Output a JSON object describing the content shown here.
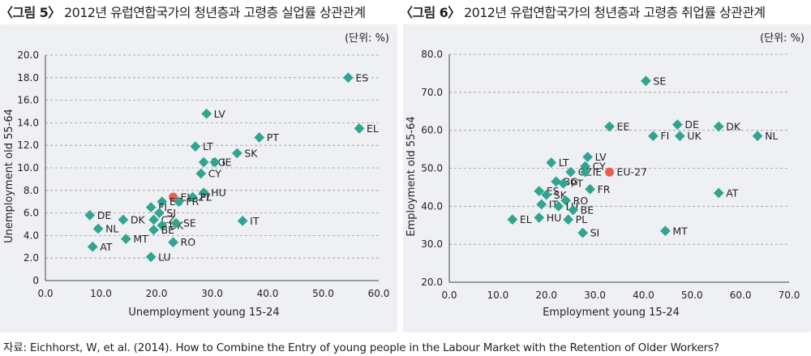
{
  "figures": {
    "left": {
      "label": "〈그림 5〉",
      "title": "2012년 유럽연합국가의 청년층과 고령층 실업률 상관관계"
    },
    "right": {
      "label": "〈그림 6〉",
      "title": "2012년 유럽연합국가의 청년층과 고령층 취업률 상관관계"
    }
  },
  "colors": {
    "point": "#2fa48f",
    "eu": "#e8604c",
    "grid": "#9a9a9a",
    "axis": "#444444",
    "panel": "#eef0f3"
  },
  "source": "자료: Eichhorst, W, et al. (2014). How to Combine the Entry of young people in the Labour Market with the Retention of Older Workers?",
  "chart_data": [
    {
      "type": "scatter",
      "title": "2012년 유럽연합국가의 청년층과 고령층 실업률 상관관계",
      "unit": "(단위: %)",
      "xlabel": "Unemployment young 15-24",
      "ylabel": "Unemployment old 55-64",
      "xlim": [
        0,
        60
      ],
      "ylim": [
        0,
        20
      ],
      "xticks": [
        "0.0",
        "10.0",
        "20.0",
        "30.0",
        "40.0",
        "50.0",
        "60.0"
      ],
      "yticks": [
        "0",
        "2.0",
        "4.0",
        "6.0",
        "8.0",
        "10.0",
        "12.0",
        "14.0",
        "16.0",
        "18.0",
        "20.0"
      ],
      "points": [
        {
          "label": "ES",
          "x": 54.5,
          "y": 18.0
        },
        {
          "label": "EL",
          "x": 56.5,
          "y": 13.5
        },
        {
          "label": "LV",
          "x": 29.0,
          "y": 14.8
        },
        {
          "label": "PT",
          "x": 38.5,
          "y": 12.7
        },
        {
          "label": "LT",
          "x": 27.0,
          "y": 11.9
        },
        {
          "label": "SK",
          "x": 34.5,
          "y": 11.3
        },
        {
          "label": "BG",
          "x": 28.5,
          "y": 10.5
        },
        {
          "label": "IE",
          "x": 30.5,
          "y": 10.5
        },
        {
          "label": "CY",
          "x": 28.0,
          "y": 9.5
        },
        {
          "label": "EU-27",
          "x": 23.0,
          "y": 7.4,
          "highlight": true
        },
        {
          "label": "HU",
          "x": 28.5,
          "y": 7.8
        },
        {
          "label": "EE",
          "x": 21.0,
          "y": 7.0
        },
        {
          "label": "PL",
          "x": 26.5,
          "y": 7.4
        },
        {
          "label": "FR",
          "x": 24.0,
          "y": 7.0
        },
        {
          "label": "FI",
          "x": 19.0,
          "y": 6.5
        },
        {
          "label": "SI",
          "x": 20.5,
          "y": 6.0
        },
        {
          "label": "CZ",
          "x": 19.5,
          "y": 5.4
        },
        {
          "label": "UK",
          "x": 21.0,
          "y": 4.9
        },
        {
          "label": "SE",
          "x": 23.5,
          "y": 5.1
        },
        {
          "label": "DK",
          "x": 14.0,
          "y": 5.4
        },
        {
          "label": "DE",
          "x": 8.0,
          "y": 5.8
        },
        {
          "label": "NL",
          "x": 9.5,
          "y": 4.6
        },
        {
          "label": "IT",
          "x": 35.5,
          "y": 5.3
        },
        {
          "label": "MT",
          "x": 14.5,
          "y": 3.7
        },
        {
          "label": "BE",
          "x": 19.5,
          "y": 4.5
        },
        {
          "label": "RO",
          "x": 23.0,
          "y": 3.4
        },
        {
          "label": "AT",
          "x": 8.5,
          "y": 3.0
        },
        {
          "label": "LU",
          "x": 19.0,
          "y": 2.1
        }
      ]
    },
    {
      "type": "scatter",
      "title": "2012년 유럽연합국가의 청년층과 고령층 취업률 상관관계",
      "unit": "(단위: %)",
      "xlabel": "Employment young 15-24",
      "ylabel": "Employment old 55-64",
      "xlim": [
        0,
        70
      ],
      "ylim": [
        20,
        80
      ],
      "xticks": [
        "0.0",
        "10.0",
        "20.0",
        "30.0",
        "40.0",
        "50.0",
        "60.0",
        "70.0"
      ],
      "yticks": [
        "20.0",
        "30.0",
        "40.0",
        "50.0",
        "60.0",
        "70.0",
        "80.0"
      ],
      "points": [
        {
          "label": "SE",
          "x": 40.5,
          "y": 73.0
        },
        {
          "label": "EE",
          "x": 33.0,
          "y": 61.0
        },
        {
          "label": "DE",
          "x": 47.0,
          "y": 61.5
        },
        {
          "label": "DK",
          "x": 55.5,
          "y": 61.0
        },
        {
          "label": "NL",
          "x": 63.5,
          "y": 58.5
        },
        {
          "label": "FI",
          "x": 42.0,
          "y": 58.5
        },
        {
          "label": "UK",
          "x": 47.5,
          "y": 58.5
        },
        {
          "label": "LV",
          "x": 28.5,
          "y": 53.0
        },
        {
          "label": "LT",
          "x": 21.0,
          "y": 51.5
        },
        {
          "label": "CY",
          "x": 28.0,
          "y": 50.5
        },
        {
          "label": "CZ",
          "x": 25.0,
          "y": 49.0
        },
        {
          "label": "IE",
          "x": 28.0,
          "y": 49.0
        },
        {
          "label": "EU-27",
          "x": 33.0,
          "y": 49.0,
          "highlight": true
        },
        {
          "label": "BG",
          "x": 22.0,
          "y": 46.5
        },
        {
          "label": "PT",
          "x": 23.5,
          "y": 46.0
        },
        {
          "label": "FR",
          "x": 29.0,
          "y": 44.5
        },
        {
          "label": "ES",
          "x": 18.5,
          "y": 44.0
        },
        {
          "label": "SK",
          "x": 20.0,
          "y": 43.0
        },
        {
          "label": "AT",
          "x": 55.5,
          "y": 43.5
        },
        {
          "label": "IT",
          "x": 19.0,
          "y": 40.5
        },
        {
          "label": "RO",
          "x": 24.0,
          "y": 41.5
        },
        {
          "label": "LU",
          "x": 22.5,
          "y": 40.0
        },
        {
          "label": "BE",
          "x": 25.5,
          "y": 39.0
        },
        {
          "label": "EL",
          "x": 13.0,
          "y": 36.5
        },
        {
          "label": "HU",
          "x": 18.5,
          "y": 37.0
        },
        {
          "label": "PL",
          "x": 24.5,
          "y": 36.5
        },
        {
          "label": "SI",
          "x": 27.5,
          "y": 33.0
        },
        {
          "label": "MT",
          "x": 44.5,
          "y": 33.5
        }
      ]
    }
  ]
}
